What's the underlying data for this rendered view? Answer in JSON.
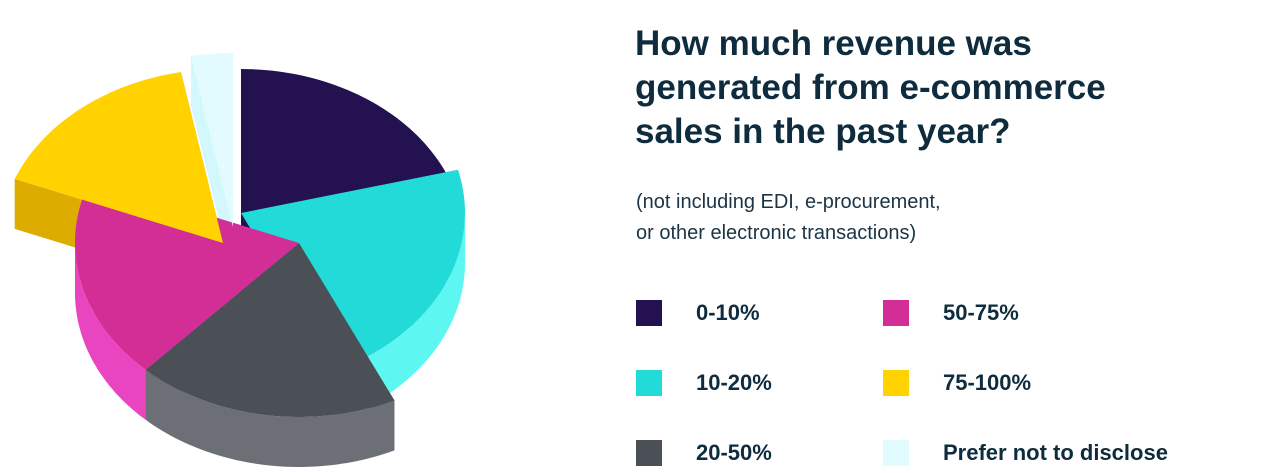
{
  "chart_data": {
    "type": "pie",
    "title_lines": [
      "How much revenue was",
      "generated from e-commerce",
      "sales in the past year?"
    ],
    "subtitle_lines": [
      "(not including EDI, e-procurement,",
      "or other electronic transactions)"
    ],
    "legend_position": "right",
    "slices": [
      {
        "label": "0-10%",
        "value": 21,
        "color": "#231150",
        "side_color": "#41288a"
      },
      {
        "label": "10-20%",
        "value": 22,
        "color": "#22dbd8",
        "side_color": "#5ef6f0"
      },
      {
        "label": "20-50%",
        "value": 19,
        "color": "#4b4f56",
        "side_color": "#6c7076"
      },
      {
        "label": "50-75%",
        "value": 19,
        "color": "#d22e96",
        "side_color": "#ea45c0"
      },
      {
        "label": "75-100%",
        "value": 16,
        "color": "#ffd200",
        "side_color": "#dcac00"
      },
      {
        "label": "Prefer not to disclose",
        "value": 3,
        "color": "#e2fbff",
        "side_color": "#d2f8fd"
      }
    ]
  }
}
